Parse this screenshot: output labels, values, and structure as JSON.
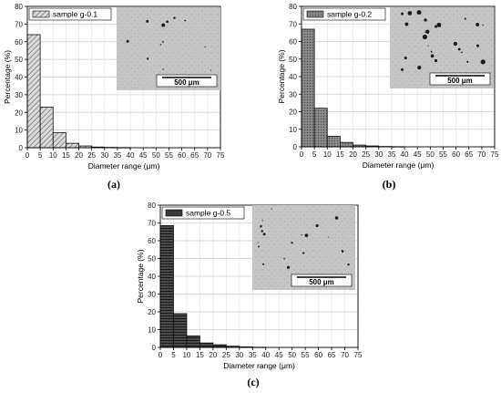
{
  "chart_data": [
    {
      "type": "bar",
      "caption": "(a)",
      "x": [
        2.5,
        7.5,
        12.5,
        17.5,
        22.5,
        27.5,
        32.5,
        37.5
      ],
      "bin_edges": [
        0,
        5,
        10,
        15,
        20,
        25,
        30,
        35,
        40
      ],
      "values": [
        64,
        23,
        8.5,
        2.5,
        1,
        0.4,
        0.2,
        0.1
      ],
      "series": [
        {
          "name": "sample g-0.1",
          "values": [
            64,
            23,
            8.5,
            2.5,
            1,
            0.4,
            0.2,
            0.1
          ],
          "fill": "hatch-diagonal",
          "color": "#bdbdbd"
        }
      ],
      "xlabel": "Diameter range (μm)",
      "ylabel": "Percentage (%)",
      "xlim": [
        0,
        75
      ],
      "ylim": [
        0,
        80
      ],
      "xticks": [
        "0",
        "5",
        "10",
        "15",
        "20",
        "25",
        "30",
        "35",
        "40",
        "45",
        "50",
        "55",
        "60",
        "65",
        "70",
        "75"
      ],
      "yticks": [
        "0",
        "10",
        "20",
        "30",
        "40",
        "50",
        "60",
        "70",
        "80"
      ],
      "grid": "y",
      "legend": "top-left",
      "inset_scale_label": "500 μm"
    },
    {
      "type": "bar",
      "caption": "(b)",
      "x": [
        2.5,
        7.5,
        12.5,
        17.5,
        22.5,
        27.5,
        32.5,
        37.5
      ],
      "bin_edges": [
        0,
        5,
        10,
        15,
        20,
        25,
        30,
        35,
        40
      ],
      "values": [
        67,
        22,
        6,
        2.5,
        1,
        0.5,
        0.2,
        0.1
      ],
      "series": [
        {
          "name": "sample g-0.2",
          "values": [
            67,
            22,
            6,
            2.5,
            1,
            0.5,
            0.2,
            0.1
          ],
          "fill": "dotted-gray",
          "color": "#6e6e6e"
        }
      ],
      "xlabel": "Diameter range (μm)",
      "ylabel": "Percentage (%)",
      "xlim": [
        0,
        75
      ],
      "ylim": [
        0,
        80
      ],
      "xticks": [
        "0",
        "5",
        "10",
        "15",
        "20",
        "25",
        "30",
        "35",
        "40",
        "45",
        "50",
        "55",
        "60",
        "65",
        "70",
        "75"
      ],
      "yticks": [
        "0",
        "10",
        "20",
        "30",
        "40",
        "50",
        "60",
        "70",
        "80"
      ],
      "grid": "y",
      "legend": "top-left",
      "inset_scale_label": "500 μm"
    },
    {
      "type": "bar",
      "caption": "(c)",
      "x": [
        2.5,
        7.5,
        12.5,
        17.5,
        22.5,
        27.5,
        32.5,
        37.5
      ],
      "bin_edges": [
        0,
        5,
        10,
        15,
        20,
        25,
        30,
        35,
        40
      ],
      "values": [
        68.5,
        19,
        6.5,
        2.5,
        1.5,
        0.7,
        0.3,
        0.1
      ],
      "series": [
        {
          "name": "sample g-0.5",
          "values": [
            68.5,
            19,
            6.5,
            2.5,
            1.5,
            0.7,
            0.3,
            0.1
          ],
          "fill": "horizontal-lines",
          "color": "#3a3a3a"
        }
      ],
      "xlabel": "Diameter range (μm)",
      "ylabel": "Percentage (%)",
      "xlim": [
        0,
        75
      ],
      "ylim": [
        0,
        80
      ],
      "xticks": [
        "0",
        "5",
        "10",
        "15",
        "20",
        "25",
        "30",
        "35",
        "40",
        "45",
        "50",
        "55",
        "60",
        "65",
        "70",
        "75"
      ],
      "yticks": [
        "0",
        "10",
        "20",
        "30",
        "40",
        "50",
        "60",
        "70",
        "80"
      ],
      "grid": "y",
      "legend": "top-left",
      "inset_scale_label": "500 μm"
    }
  ]
}
